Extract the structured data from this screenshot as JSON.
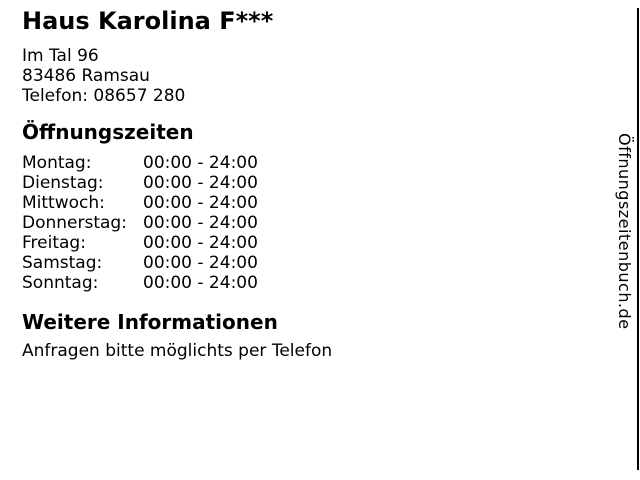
{
  "page": {
    "title": "Haus Karolina F***",
    "address": {
      "street": "Im Tal 96",
      "city": "83486 Ramsau",
      "phone": "Telefon: 08657 280"
    },
    "hours": {
      "heading": "Öffnungszeiten",
      "rows": [
        {
          "day": "Montag:",
          "time": "00:00 - 24:00"
        },
        {
          "day": "Dienstag:",
          "time": "00:00 - 24:00"
        },
        {
          "day": "Mittwoch:",
          "time": "00:00 - 24:00"
        },
        {
          "day": "Donnerstag:",
          "time": "00:00 - 24:00"
        },
        {
          "day": "Freitag:",
          "time": "00:00 - 24:00"
        },
        {
          "day": "Samstag:",
          "time": "00:00 - 24:00"
        },
        {
          "day": "Sonntag:",
          "time": "00:00 - 24:00"
        }
      ]
    },
    "info": {
      "heading": "Weitere Informationen",
      "text": "Anfragen bitte möglichts per Telefon"
    },
    "watermark": "Öffnungszeitenbuch.de",
    "colors": {
      "text": "#000000",
      "background": "#ffffff"
    }
  }
}
